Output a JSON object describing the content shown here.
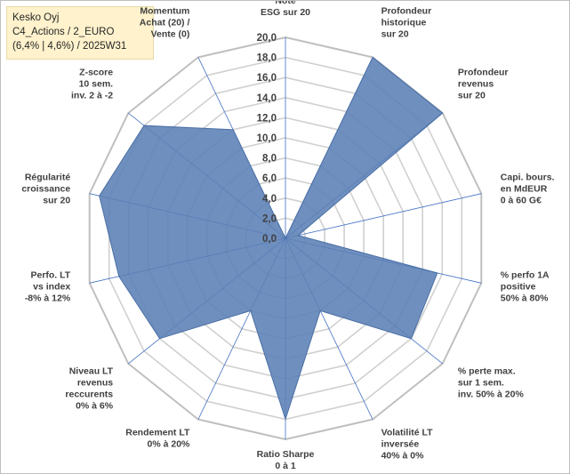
{
  "header": {
    "line1": "Kesko Oyj",
    "line2": "C4_Actions / 2_EURO",
    "line3": "(6,4% | 4,6%) / 2025W31"
  },
  "colors": {
    "grid": "#d0d0d0",
    "spoke": "#4472c4",
    "fill": "#5b7fb5",
    "stroke": "#4a6fa5",
    "text": "#404040"
  },
  "chart_data": {
    "type": "radar",
    "range": [
      0,
      20
    ],
    "step": 2,
    "tick_labels": [
      "0,0",
      "2,0",
      "4,0",
      "6,0",
      "8,0",
      "10,0",
      "12,0",
      "14,0",
      "16,0",
      "18,0",
      "20,0"
    ],
    "axes": [
      {
        "label": [
          "Note",
          "ESG sur 20"
        ],
        "value": 0
      },
      {
        "label": [
          "Profondeur",
          "historique",
          "sur 20"
        ],
        "value": 20
      },
      {
        "label": [
          "Profondeur",
          "revenus",
          "sur 20"
        ],
        "value": 20
      },
      {
        "label": [
          "Capi. bours.",
          "en MdEUR",
          "0 à 60 G€"
        ],
        "value": 1.3
      },
      {
        "label": [
          "% perfo 1A",
          "positive",
          "50% à 80%"
        ],
        "value": 15.5
      },
      {
        "label": [
          "% perte max.",
          "sur 1 sem.",
          "inv. 50% à 20%"
        ],
        "value": 16
      },
      {
        "label": [
          "Volatilité LT",
          "inversée",
          "40% à 0%"
        ],
        "value": 8
      },
      {
        "label": [
          "Ratio Sharpe",
          "0 à 1"
        ],
        "value": 18
      },
      {
        "label": [
          "Rendement LT",
          "0% à 20%"
        ],
        "value": 8
      },
      {
        "label": [
          "Niveau LT",
          "revenus",
          "reccurents",
          "0% à 6%"
        ],
        "value": 16
      },
      {
        "label": [
          "Perfo. LT",
          "vs index",
          "-8% à 12%"
        ],
        "value": 17
      },
      {
        "label": [
          "Régularité",
          "croissance",
          "sur 20"
        ],
        "value": 19
      },
      {
        "label": [
          "Z-score",
          "10 sem.",
          "inv. 2 à -2"
        ],
        "value": 18
      },
      {
        "label": [
          "Momentum",
          "Achat (20) /",
          "Vente (0)"
        ],
        "value": 12
      }
    ]
  }
}
